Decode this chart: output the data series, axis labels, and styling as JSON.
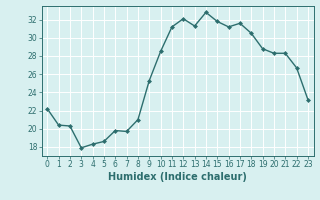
{
  "x": [
    0,
    1,
    2,
    3,
    4,
    5,
    6,
    7,
    8,
    9,
    10,
    11,
    12,
    13,
    14,
    15,
    16,
    17,
    18,
    19,
    20,
    21,
    22,
    23
  ],
  "y": [
    22.2,
    20.4,
    20.3,
    17.9,
    18.3,
    18.6,
    19.8,
    19.7,
    21.0,
    25.3,
    28.5,
    31.2,
    32.1,
    31.3,
    32.8,
    31.8,
    31.2,
    31.6,
    30.5,
    28.8,
    28.3,
    28.3,
    26.7,
    23.2
  ],
  "line_color": "#2d6e6e",
  "marker": "D",
  "marker_size": 2.0,
  "linewidth": 1.0,
  "xlabel": "Humidex (Indice chaleur)",
  "xlabel_fontsize": 7,
  "xlim": [
    -0.5,
    23.5
  ],
  "ylim": [
    17,
    33.5
  ],
  "yticks": [
    18,
    20,
    22,
    24,
    26,
    28,
    30,
    32
  ],
  "xtick_labels": [
    "0",
    "1",
    "2",
    "3",
    "4",
    "5",
    "6",
    "7",
    "8",
    "9",
    "10",
    "11",
    "12",
    "13",
    "14",
    "15",
    "16",
    "17",
    "18",
    "19",
    "20",
    "21",
    "22",
    "23"
  ],
  "background_color": "#d8f0f0",
  "grid_color": "#ffffff",
  "tick_color": "#2d6e6e",
  "tick_fontsize": 5.5,
  "ylabel_fontsize": 5.5
}
